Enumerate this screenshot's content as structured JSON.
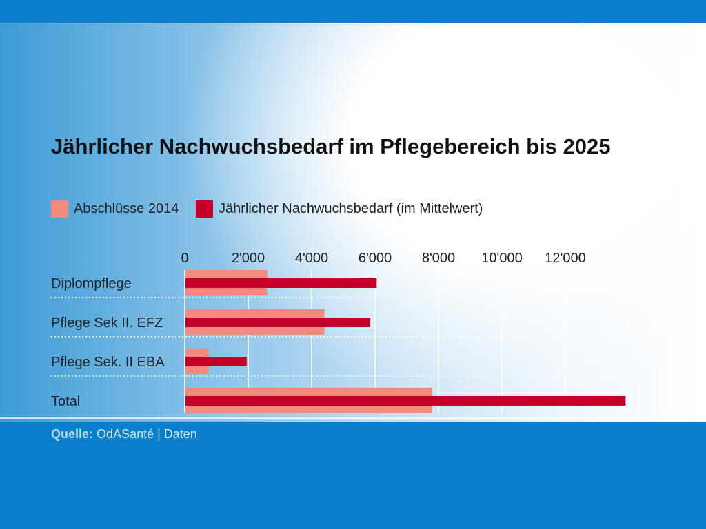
{
  "chart_data": {
    "type": "bar",
    "orientation": "horizontal",
    "title": "Jährlicher Nachwuchsbedarf im Pflegebereich bis 2025",
    "categories": [
      "Diplompflege",
      "Pflege Sek II. EFZ",
      "Pflege Sek. II EBA",
      "Total"
    ],
    "series": [
      {
        "name": "Abschlüsse 2014",
        "values": [
          2600,
          4400,
          750,
          7800
        ],
        "color": "#f28b7d"
      },
      {
        "name": "Jährlicher Nachwuchsbedarf (im Mittelwert)",
        "values": [
          6050,
          5850,
          1950,
          13900
        ],
        "color": "#c4002a"
      }
    ],
    "xticks": [
      0,
      2000,
      4000,
      6000,
      8000,
      10000,
      12000
    ],
    "xtick_labels": [
      "0",
      "2'000",
      "4'000",
      "6'000",
      "8'000",
      "10'000",
      "12'000"
    ],
    "xlim": [
      0,
      14000
    ],
    "xaxis_position": "top",
    "grid": true,
    "legend": "top-left",
    "source_label": "Quelle:",
    "source_text": "OdASanté | Daten"
  }
}
